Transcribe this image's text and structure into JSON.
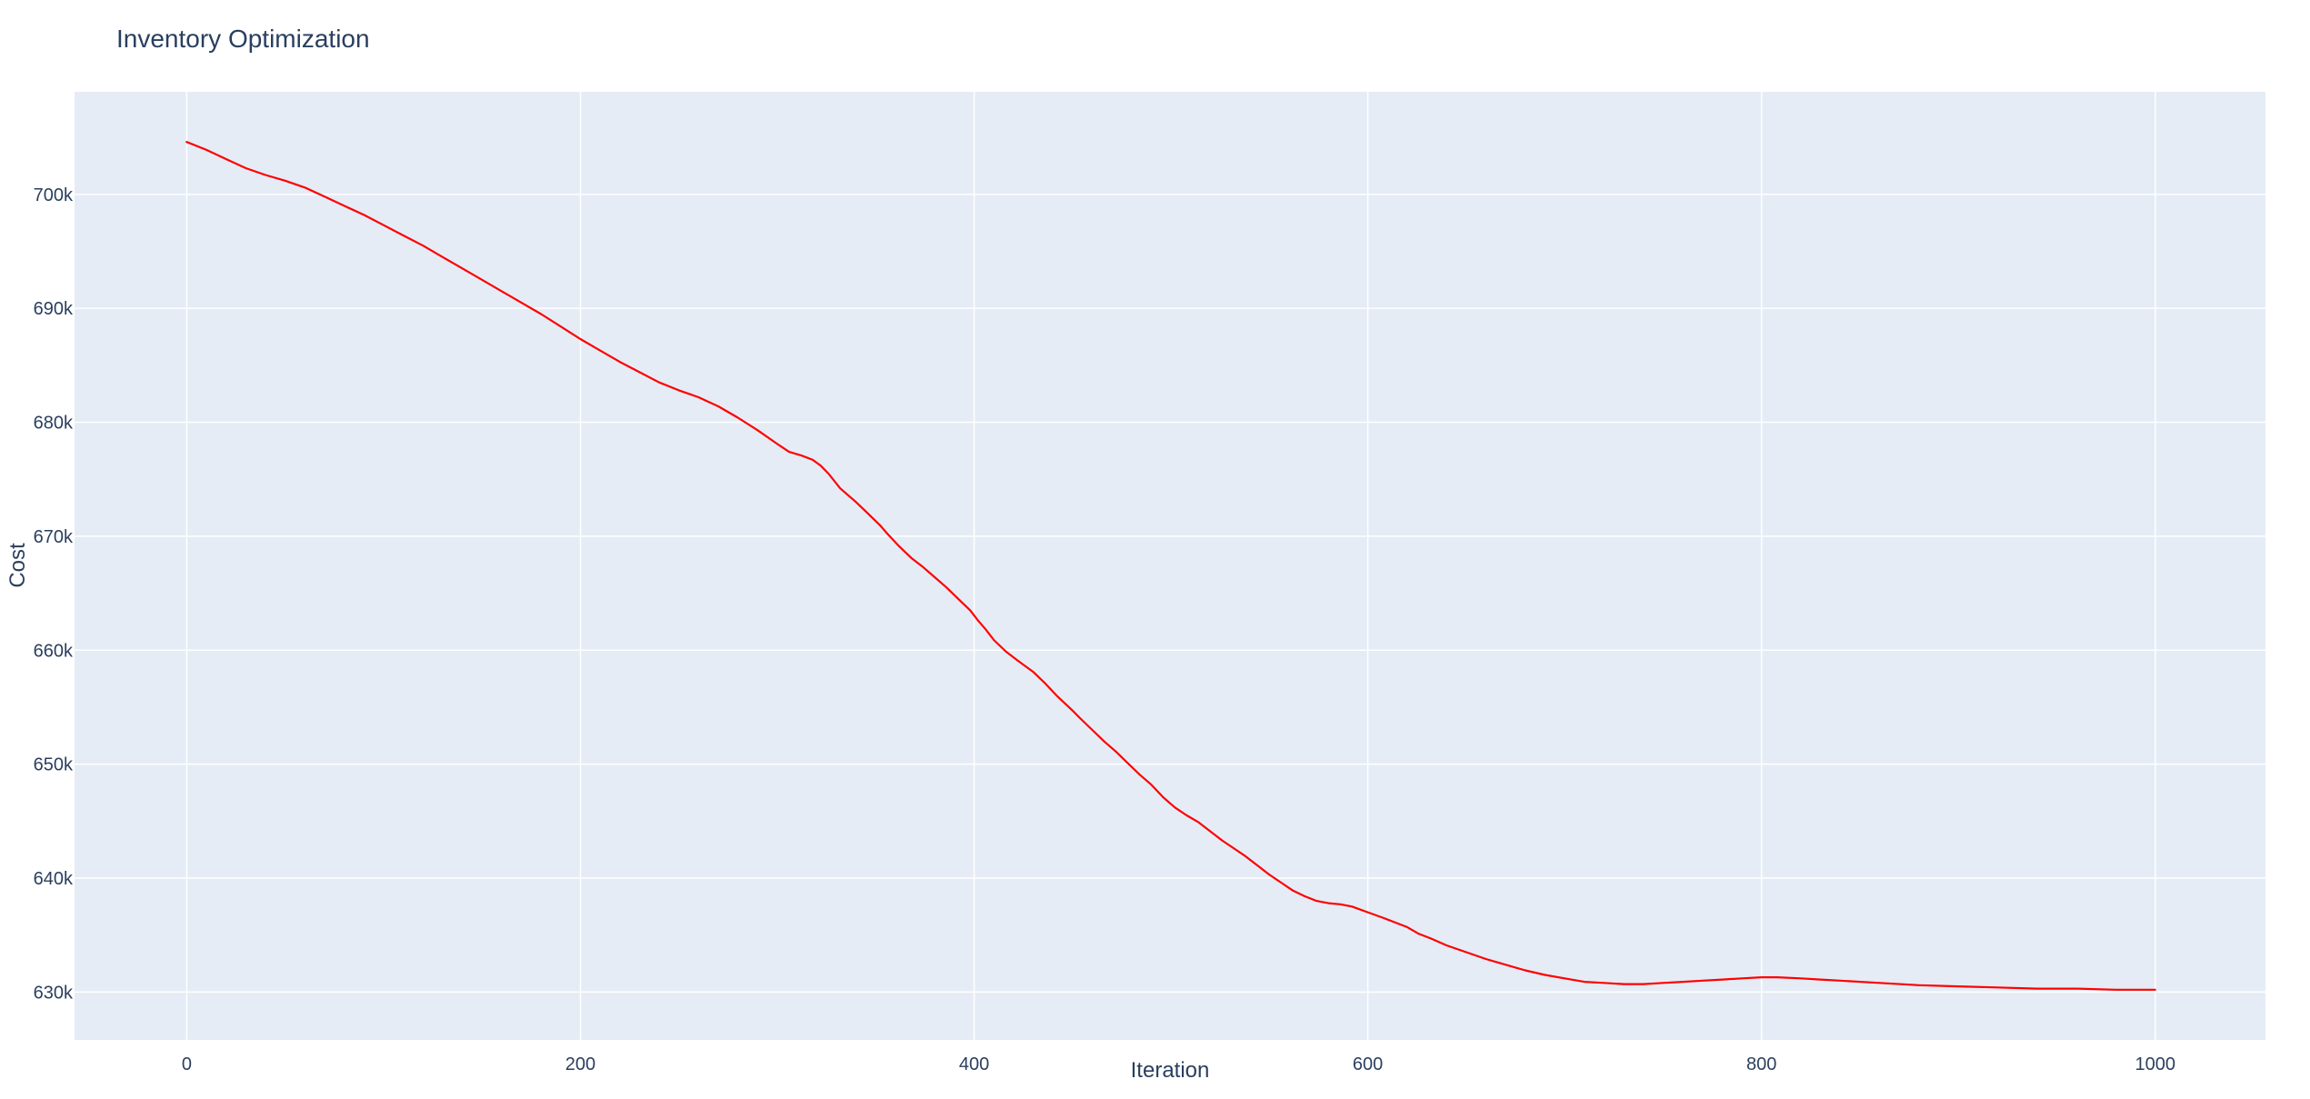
{
  "colors": {
    "plot_background": "#e5ecf6",
    "grid": "#ffffff",
    "line": "#ff0000",
    "text": "#2a3f5f"
  },
  "chart_data": {
    "type": "line",
    "title": "Inventory Optimization",
    "xlabel": "Iteration",
    "ylabel": "Cost",
    "xlim": [
      -57,
      1056
    ],
    "ylim": [
      625800,
      709000
    ],
    "grid": true,
    "legend": "none",
    "x_ticks": [
      0,
      200,
      400,
      600,
      800,
      1000
    ],
    "x_tick_labels": [
      "0",
      "200",
      "400",
      "600",
      "800",
      "1000"
    ],
    "y_ticks": [
      630000,
      640000,
      650000,
      660000,
      670000,
      680000,
      690000,
      700000
    ],
    "y_tick_labels": [
      "630k",
      "640k",
      "650k",
      "660k",
      "670k",
      "680k",
      "690k",
      "700k"
    ],
    "series": [
      {
        "color": "#ff0000",
        "x": [
          0,
          10,
          20,
          30,
          40,
          50,
          60,
          70,
          80,
          90,
          100,
          110,
          120,
          130,
          140,
          150,
          160,
          170,
          180,
          190,
          200,
          210,
          220,
          230,
          240,
          250,
          260,
          265,
          270,
          280,
          290,
          300,
          306,
          312,
          318,
          322,
          326,
          332,
          340,
          346,
          352,
          356,
          362,
          368,
          374,
          380,
          386,
          392,
          398,
          402,
          406,
          410,
          416,
          422,
          430,
          436,
          442,
          450,
          454,
          460,
          466,
          472,
          478,
          484,
          490,
          496,
          502,
          508,
          514,
          520,
          526,
          532,
          538,
          544,
          550,
          556,
          562,
          568,
          574,
          580,
          586,
          592,
          600,
          608,
          614,
          620,
          626,
          632,
          640,
          650,
          660,
          670,
          680,
          690,
          700,
          710,
          720,
          730,
          740,
          750,
          760,
          770,
          780,
          790,
          800,
          808,
          820,
          830,
          840,
          860,
          880,
          900,
          920,
          940,
          960,
          980,
          1000
        ],
        "y": [
          704600,
          703900,
          703100,
          702300,
          701700,
          701200,
          700600,
          699800,
          699000,
          698200,
          697300,
          696400,
          695500,
          694500,
          693500,
          692500,
          691500,
          690500,
          689500,
          688400,
          687300,
          686300,
          685300,
          684400,
          683500,
          682800,
          682200,
          681800,
          681400,
          680400,
          679300,
          678100,
          677400,
          677100,
          676700,
          676200,
          675500,
          674200,
          673000,
          672000,
          671000,
          670200,
          669100,
          668100,
          667300,
          666400,
          665500,
          664500,
          663500,
          662600,
          661800,
          660900,
          659900,
          659100,
          658100,
          657100,
          656000,
          654700,
          654000,
          653000,
          652000,
          651100,
          650100,
          649100,
          648200,
          647100,
          646200,
          645500,
          644900,
          644100,
          643300,
          642600,
          641900,
          641100,
          640300,
          639600,
          638900,
          638400,
          638000,
          637800,
          637700,
          637500,
          637000,
          636500,
          636100,
          635700,
          635100,
          634700,
          634100,
          633500,
          632900,
          632400,
          631900,
          631500,
          631200,
          630900,
          630800,
          630700,
          630700,
          630800,
          630900,
          631000,
          631100,
          631200,
          631300,
          631300,
          631200,
          631100,
          631000,
          630800,
          630600,
          630500,
          630400,
          630300,
          630300,
          630200,
          630200
        ]
      }
    ]
  }
}
